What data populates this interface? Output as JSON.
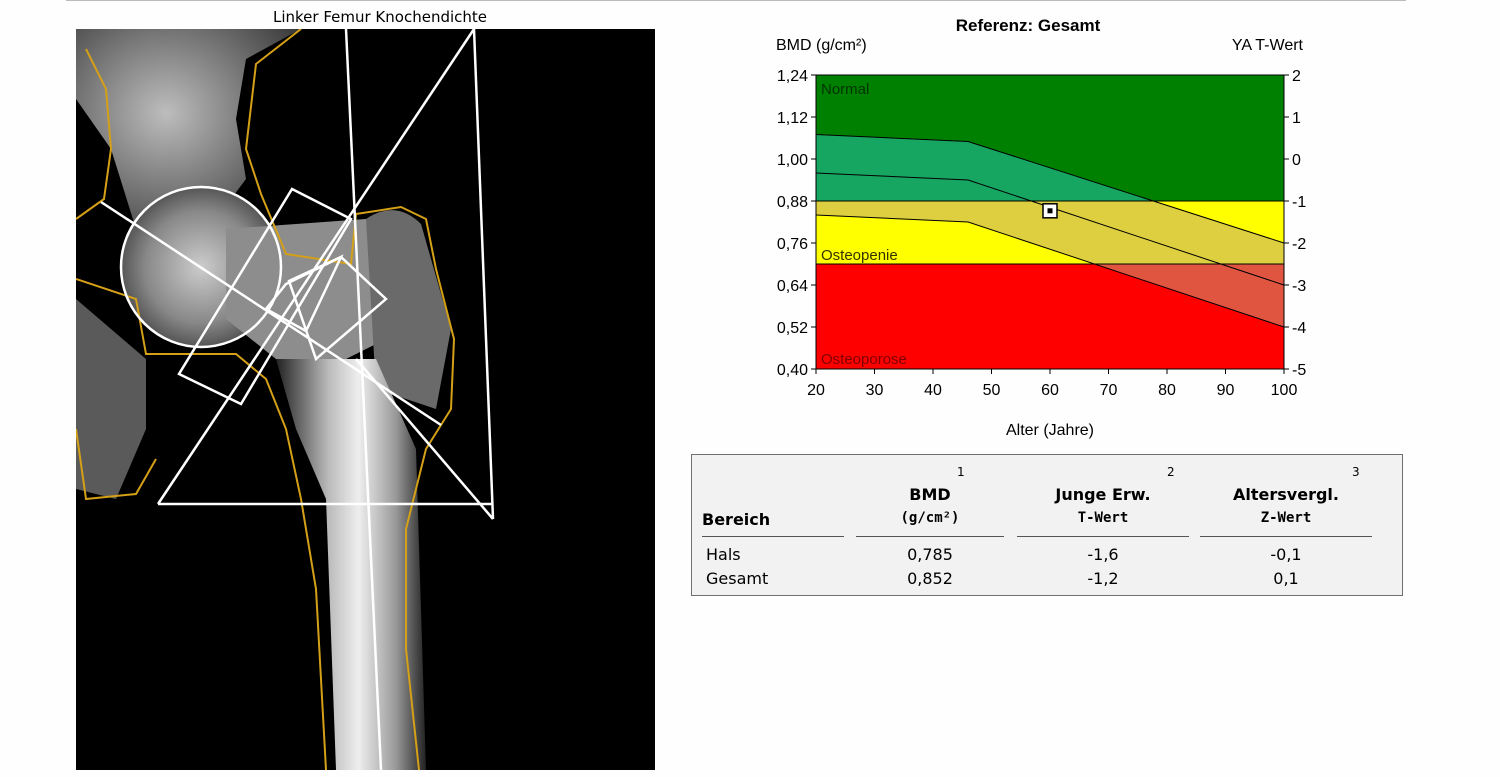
{
  "scan": {
    "title": "Linker Femur Knochendichte"
  },
  "chart_data": {
    "type": "area",
    "title": "Referenz: Gesamt",
    "ylabel": "BMD (g/cm²)",
    "y2label": "YA T-Wert",
    "xlabel": "Alter (Jahre)",
    "xlim": [
      20,
      100
    ],
    "ylim": [
      0.4,
      1.24
    ],
    "x_ticks": [
      "20",
      "30",
      "40",
      "50",
      "60",
      "70",
      "80",
      "90",
      "100"
    ],
    "y_ticks": [
      "1,24",
      "1,12",
      "1,00",
      "0,88",
      "0,76",
      "0,64",
      "0,52",
      "0,40"
    ],
    "y2_ticks": [
      "2",
      "1",
      "0",
      "-1",
      "-2",
      "-3",
      "-4",
      "-5"
    ],
    "zones": [
      {
        "name": "Normal",
        "from": 0.88,
        "to": 1.24,
        "color": "#008000"
      },
      {
        "name": "Osteopenie",
        "from": 0.7,
        "to": 0.88,
        "color": "#ffff00"
      },
      {
        "name": "Osteoporose",
        "from": 0.4,
        "to": 0.7,
        "color": "#ff0000"
      }
    ],
    "reference_curves": [
      {
        "x": [
          20,
          46,
          100
        ],
        "y": [
          1.07,
          1.05,
          0.76
        ]
      },
      {
        "x": [
          20,
          46,
          100
        ],
        "y": [
          0.96,
          0.94,
          0.64
        ]
      },
      {
        "x": [
          20,
          46,
          100
        ],
        "y": [
          0.84,
          0.82,
          0.52
        ]
      }
    ],
    "patient_point": {
      "x": 60,
      "y": 0.852
    },
    "colors": {
      "band_green": "#17a562",
      "band_yellow": "#ddcf3f",
      "band_red": "#df5540"
    }
  },
  "results": {
    "col_area": "Bereich",
    "col_bmd": {
      "label": "BMD",
      "unit": "(g/cm²)",
      "ref": "1"
    },
    "col_t": {
      "label": "Junge Erw.",
      "unit": "T-Wert",
      "ref": "2"
    },
    "col_z": {
      "label": "Altersvergl.",
      "unit": "Z-Wert",
      "ref": "3"
    },
    "rows": [
      {
        "area": "Hals",
        "bmd": "0,785",
        "t": "-1,6",
        "z": "-0,1"
      },
      {
        "area": "Gesamt",
        "bmd": "0,852",
        "t": "-1,2",
        "z": "0,1"
      }
    ]
  }
}
